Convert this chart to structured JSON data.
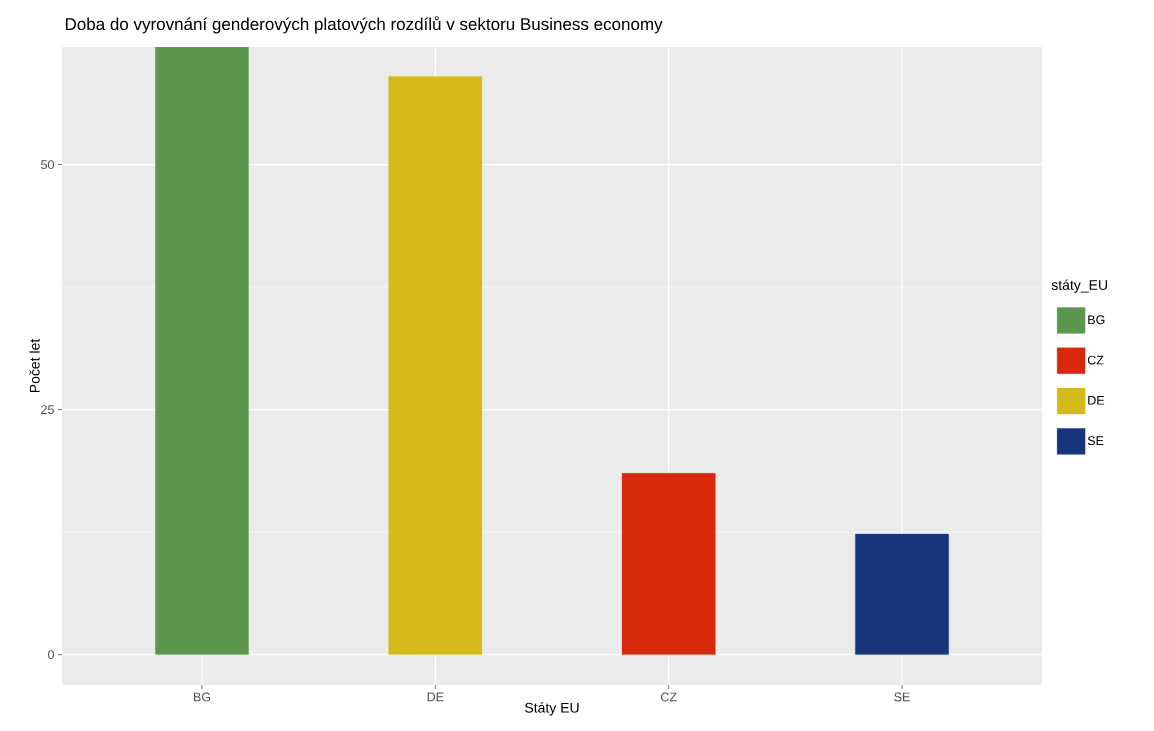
{
  "chart_data": {
    "type": "bar",
    "title": "Doba do vyrovnání genderových platových rozdílů v sektoru Business economy",
    "xlabel": "Státy EU",
    "ylabel": "Počet let",
    "legend_title": "státy_EU",
    "categories": [
      "BG",
      "DE",
      "CZ",
      "SE"
    ],
    "series": [
      {
        "name": "BG",
        "color": "#5b984e",
        "values": [
          62,
          null,
          null,
          null
        ]
      },
      {
        "name": "CZ",
        "color": "#d8290c",
        "values": [
          null,
          null,
          18.5,
          null
        ]
      },
      {
        "name": "DE",
        "color": "#d6b91a",
        "values": [
          null,
          59,
          null,
          null
        ]
      },
      {
        "name": "SE",
        "color": "#17357c",
        "values": [
          null,
          null,
          null,
          12.3
        ]
      }
    ],
    "ylim": [
      -3.1,
      62
    ],
    "yticks": [
      0,
      {
        "value": 12.5,
        "label": null
      },
      25,
      {
        "value": 37.5,
        "label": null
      },
      50
    ],
    "grid": true,
    "legend": "right"
  }
}
